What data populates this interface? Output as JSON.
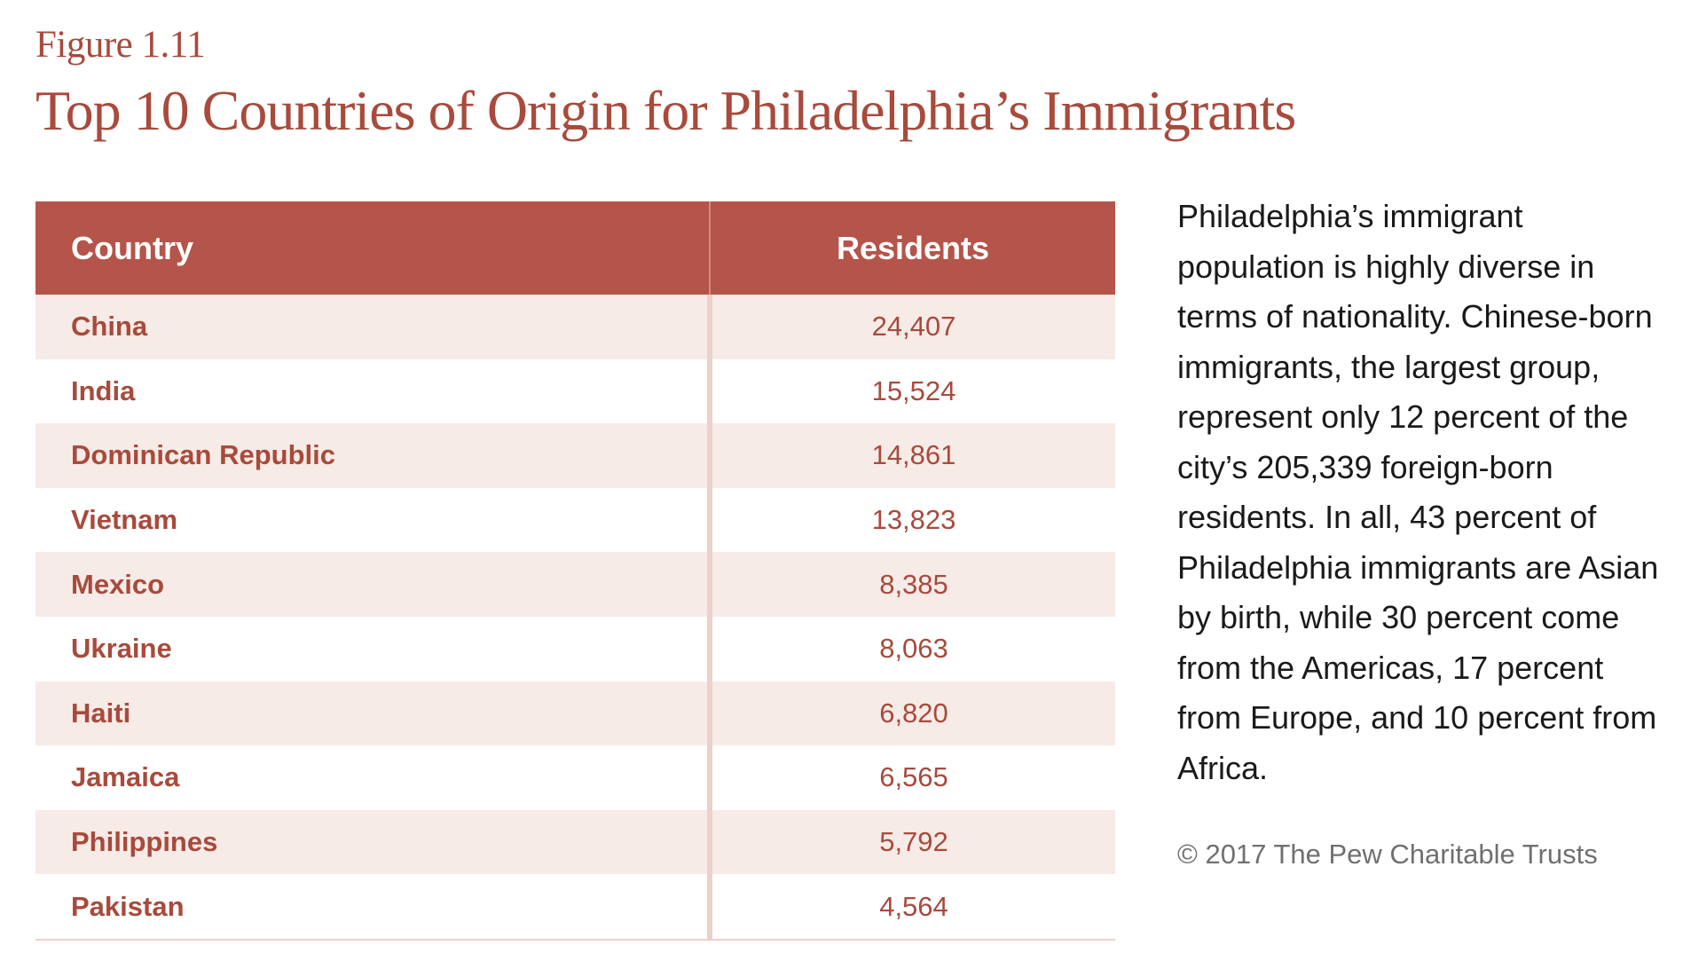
{
  "figure_label": "Figure 1.11",
  "title": "Top 10 Countries of Origin for Philadelphia’s Immigrants",
  "chart_data": {
    "type": "table",
    "title": "Top 10 Countries of Origin for Philadelphia’s Immigrants",
    "columns": [
      "Country",
      "Residents"
    ],
    "rows": [
      {
        "country": "China",
        "residents": "24,407"
      },
      {
        "country": "India",
        "residents": "15,524"
      },
      {
        "country": "Dominican Republic",
        "residents": "14,861"
      },
      {
        "country": "Vietnam",
        "residents": "13,823"
      },
      {
        "country": "Mexico",
        "residents": "8,385"
      },
      {
        "country": "Ukraine",
        "residents": "8,063"
      },
      {
        "country": "Haiti",
        "residents": "6,820"
      },
      {
        "country": "Jamaica",
        "residents": "6,565"
      },
      {
        "country": "Philippines",
        "residents": "5,792"
      },
      {
        "country": "Pakistan",
        "residents": "4,564"
      }
    ]
  },
  "side_text": "Philadelphia’s immigrant population is highly diverse in terms of nationality. Chinese-born immigrants, the largest group, represent only 12 percent of the city’s 205,339 foreign-born residents. In all, 43 percent of Philadelphia immigrants are Asian by birth, while 30 percent come from the Americas, 17 percent from Europe, and 10 percent from Africa.",
  "copyright": "© 2017 The Pew Charitable Trusts",
  "colors": {
    "accent": "#a84a3c",
    "header_bg": "#b5544a",
    "row_alt": "#f6ebe6"
  }
}
